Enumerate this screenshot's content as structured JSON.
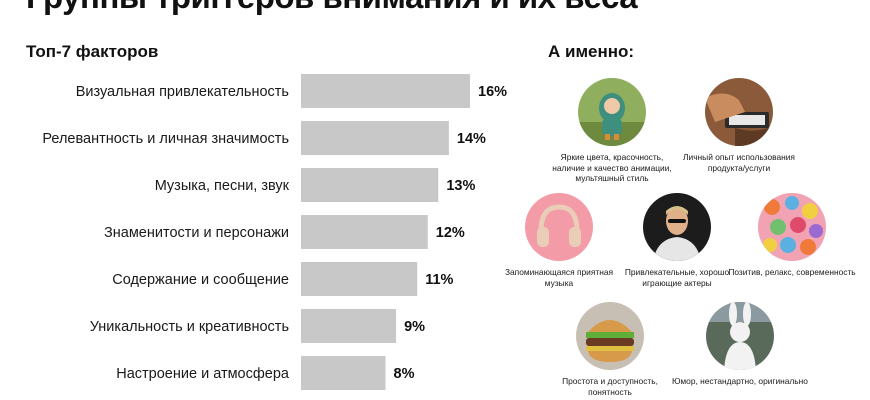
{
  "page": {
    "title": "Группы триггеров внимания и их веса",
    "chart_heading": "Топ-7 факторов",
    "right_heading": "А именно:"
  },
  "chart_data": {
    "type": "bar",
    "orientation": "horizontal",
    "title": "Топ-7 факторов",
    "categories": [
      "Визуальная привлекательность",
      "Релевантность и личная значимость",
      "Музыка, песни, звук",
      "Знаменитости и персонажи",
      "Содержание и сообщение",
      "Уникальность и креативность",
      "Настроение и атмосфера"
    ],
    "values": [
      16,
      14,
      13,
      12,
      11,
      9,
      8
    ],
    "value_labels": [
      "16%",
      "14%",
      "13%",
      "12%",
      "11%",
      "9%",
      "8%"
    ],
    "unit": "%",
    "grid": false,
    "bar_color": "#c8c8c8"
  },
  "examples": [
    {
      "icon": "cartoon-toy-image",
      "caption": "Яркие цвета, красочность, наличие и качество анимации, мультяшный стиль"
    },
    {
      "icon": "product-usage-image",
      "caption": "Личный опыт использования продукта/услуги"
    },
    {
      "icon": "headphones-image",
      "caption": "Запоминающаяся приятная музыка"
    },
    {
      "icon": "actor-portrait-image",
      "caption": "Привлекательные, хорошо играющие актеры"
    },
    {
      "icon": "colorful-candies-image",
      "caption": "Позитив, релакс, современность"
    },
    {
      "icon": "burger-image",
      "caption": "Простота и доступность, понятность"
    },
    {
      "icon": "bunny-costume-image",
      "caption": "Юмор, нестандартно, оригинально"
    }
  ]
}
